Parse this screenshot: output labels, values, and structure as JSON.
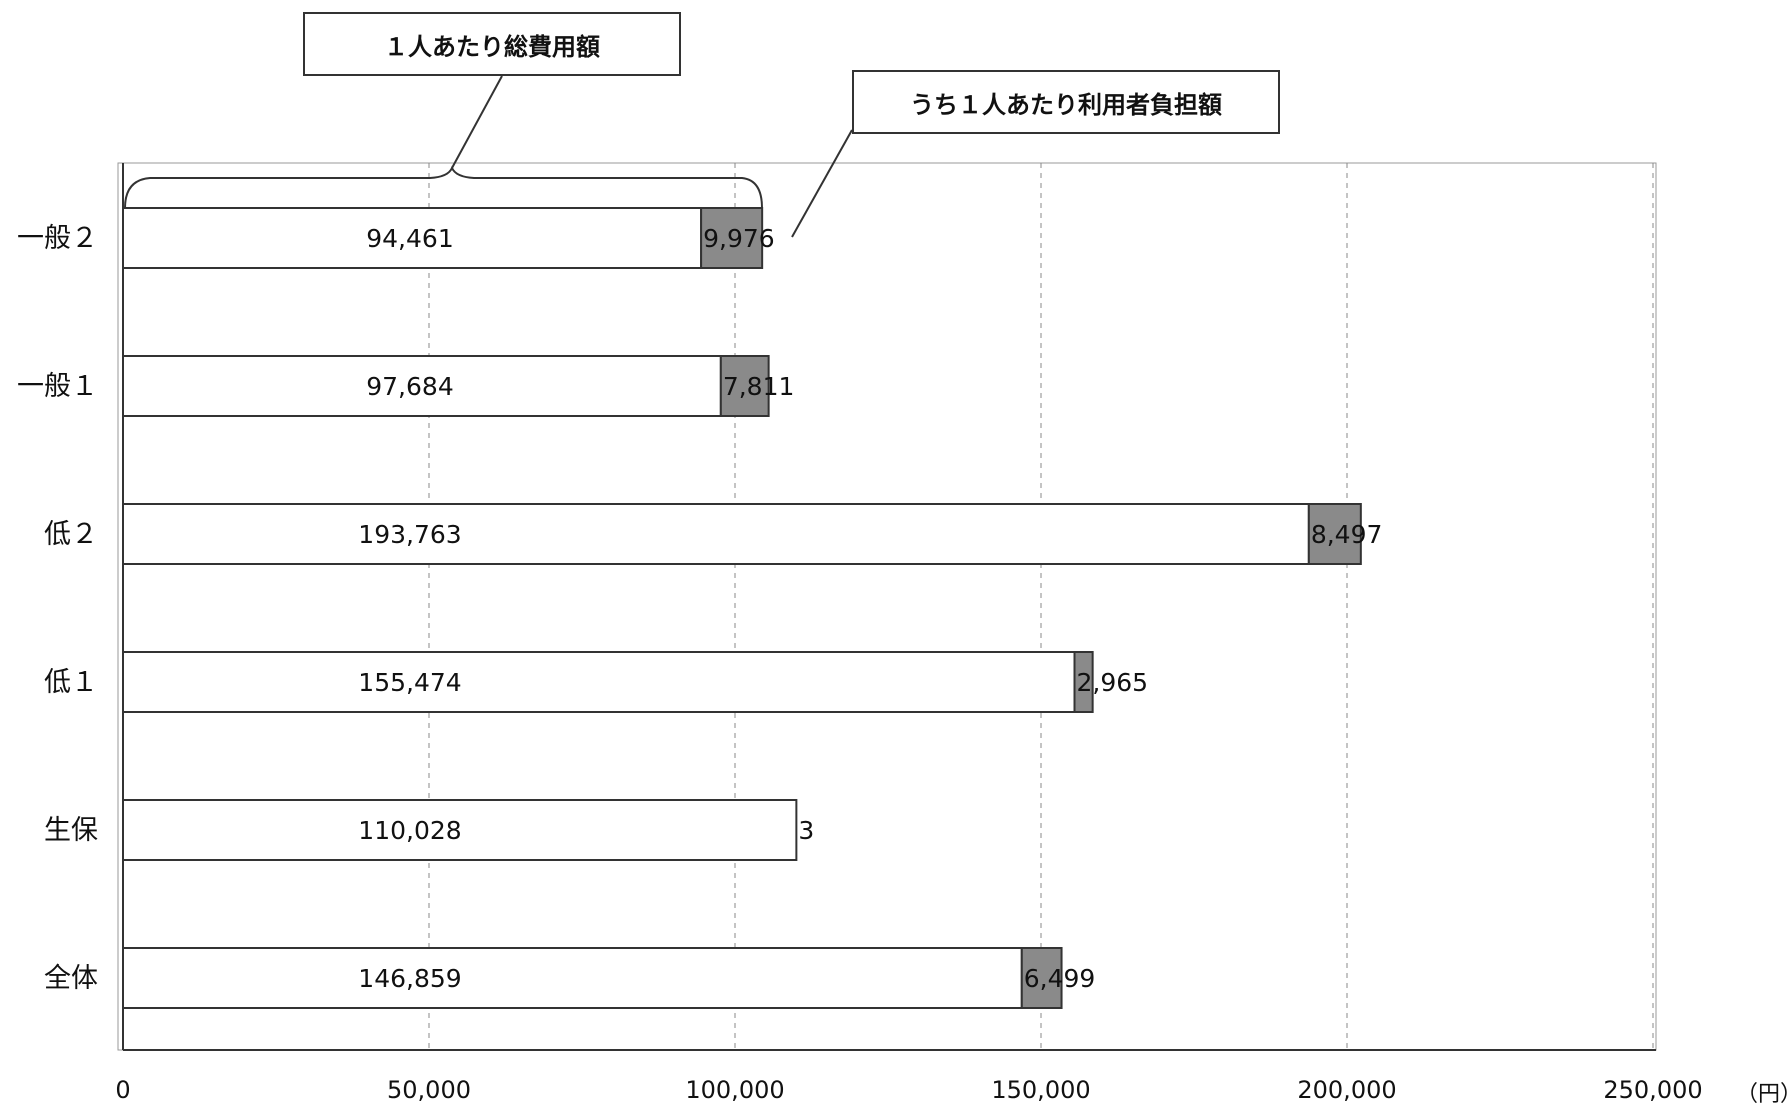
{
  "chart_data": {
    "type": "bar",
    "orientation": "horizontal",
    "stacked": true,
    "categories": [
      "一般２",
      "一般１",
      "低２",
      "低１",
      "生保",
      "全体"
    ],
    "series": [
      {
        "name": "１人あたり総費用額",
        "values": [
          94461,
          97684,
          193763,
          155474,
          110028,
          146859
        ],
        "labels": [
          "94,461",
          "97,684",
          "193,763",
          "155,474",
          "110,028",
          "146,859"
        ]
      },
      {
        "name": "うち１人あたり利用者負担額",
        "values": [
          9976,
          7811,
          8497,
          2965,
          3,
          6499
        ],
        "labels": [
          "9,976",
          "7,811",
          "8,497",
          "2,965",
          "3",
          "6,499"
        ]
      }
    ],
    "xlim": [
      0,
      250000
    ],
    "xticks": [
      0,
      50000,
      100000,
      150000,
      200000,
      250000
    ],
    "xtick_labels": [
      "0",
      "50,000",
      "100,000",
      "150,000",
      "200,000",
      "250,000"
    ],
    "x_unit": "（円）",
    "grid": "vertical dashed",
    "colors": {
      "total": "#ffffff",
      "user_share": "#8a8a8a",
      "axis": "#333333",
      "grid": "#888888"
    }
  },
  "callouts": {
    "total_label": "１人あたり総費用額",
    "user_label": "うち１人あたり利用者負担額"
  }
}
